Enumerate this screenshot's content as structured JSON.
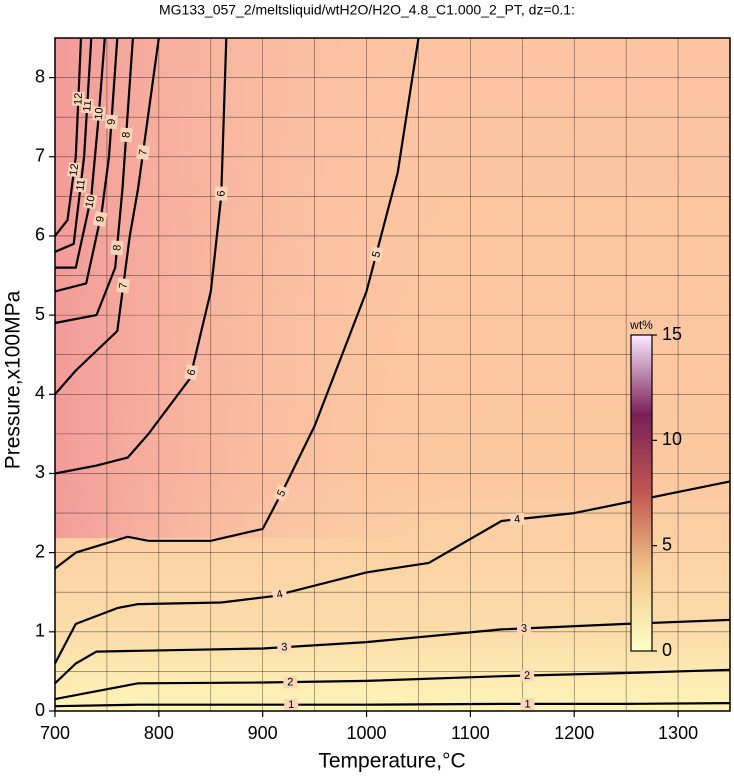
{
  "chart_data": {
    "type": "contour",
    "title": "MG133_057_2/meltsliquid/wtH2O/H2O_4.8_C1.000_2_PT, dz=0.1:",
    "x_label": "Temperature,°C",
    "y_label": "Pressure,x100MPa",
    "xlim": [
      700,
      1350
    ],
    "ylim": [
      0,
      8.5
    ],
    "xticks": [
      700,
      800,
      900,
      1000,
      1100,
      1200,
      1300
    ],
    "yticks": [
      0,
      1,
      2,
      3,
      4,
      5,
      6,
      7,
      8
    ],
    "x_minor_grid": [
      750,
      850,
      950,
      1050,
      1150,
      1250
    ],
    "y_minor_grid": [
      0.5,
      1.5,
      2.5,
      3.5,
      4.5,
      5.5,
      6.5,
      7.5
    ],
    "grid": true,
    "contours": [
      {
        "level": 1,
        "x": [
          700,
          780,
          900,
          1000,
          1130,
          1250,
          1350
        ],
        "y": [
          0.06,
          0.08,
          0.08,
          0.08,
          0.09,
          0.09,
          0.1
        ]
      },
      {
        "level": 2,
        "x": [
          700,
          740,
          780,
          900,
          1000,
          1130,
          1250,
          1350
        ],
        "y": [
          0.15,
          0.25,
          0.35,
          0.36,
          0.38,
          0.44,
          0.48,
          0.52
        ]
      },
      {
        "level": 3,
        "x": [
          700,
          720,
          740,
          780,
          900,
          1000,
          1130,
          1250,
          1350
        ],
        "y": [
          0.35,
          0.6,
          0.75,
          0.76,
          0.79,
          0.87,
          1.03,
          1.1,
          1.15
        ]
      },
      {
        "level": 4,
        "x": [
          700,
          720,
          760,
          780,
          860,
          910,
          1000,
          1060,
          1130,
          1200,
          1350
        ],
        "y": [
          0.6,
          1.1,
          1.3,
          1.35,
          1.37,
          1.45,
          1.75,
          1.87,
          2.4,
          2.5,
          2.9
        ]
      },
      {
        "level": 5,
        "x": [
          700,
          720,
          770,
          790,
          850,
          900,
          920,
          950,
          1000,
          1030,
          1050
        ],
        "y": [
          1.8,
          2.0,
          2.2,
          2.15,
          2.15,
          2.3,
          2.8,
          3.6,
          5.3,
          6.8,
          8.5
        ]
      },
      {
        "level": 6,
        "x": [
          700,
          740,
          770,
          790,
          830,
          850,
          860,
          865
        ],
        "y": [
          3.0,
          3.1,
          3.2,
          3.5,
          4.2,
          5.3,
          6.5,
          8.5
        ]
      },
      {
        "level": 7,
        "x": [
          700,
          720,
          760,
          772,
          780,
          800
        ],
        "y": [
          4.0,
          4.3,
          4.8,
          6.0,
          6.6,
          8.5
        ]
      },
      {
        "level": 8,
        "x": [
          700,
          740,
          758,
          765,
          775
        ],
        "y": [
          4.9,
          5.0,
          5.6,
          6.6,
          8.5
        ]
      },
      {
        "level": 9,
        "x": [
          700,
          730,
          745,
          752,
          760
        ],
        "y": [
          5.3,
          5.4,
          6.3,
          7.0,
          8.5
        ]
      },
      {
        "level": 10,
        "x": [
          700,
          720,
          735,
          742,
          748
        ],
        "y": [
          5.6,
          5.6,
          6.5,
          7.5,
          8.5
        ]
      },
      {
        "level": 11,
        "x": [
          700,
          718,
          728,
          735
        ],
        "y": [
          5.8,
          5.9,
          7.0,
          8.5
        ]
      },
      {
        "level": 12,
        "x": [
          700,
          712,
          720,
          725
        ],
        "y": [
          6.0,
          6.2,
          7.0,
          8.5
        ]
      }
    ],
    "colorbar": {
      "label": "wt%",
      "lim": [
        0,
        15
      ],
      "ticks": [
        0,
        5,
        10,
        15
      ],
      "colors": [
        "#ffffc8",
        "#f2c68a",
        "#c05850",
        "#7a2058",
        "#fbeaff"
      ]
    }
  }
}
